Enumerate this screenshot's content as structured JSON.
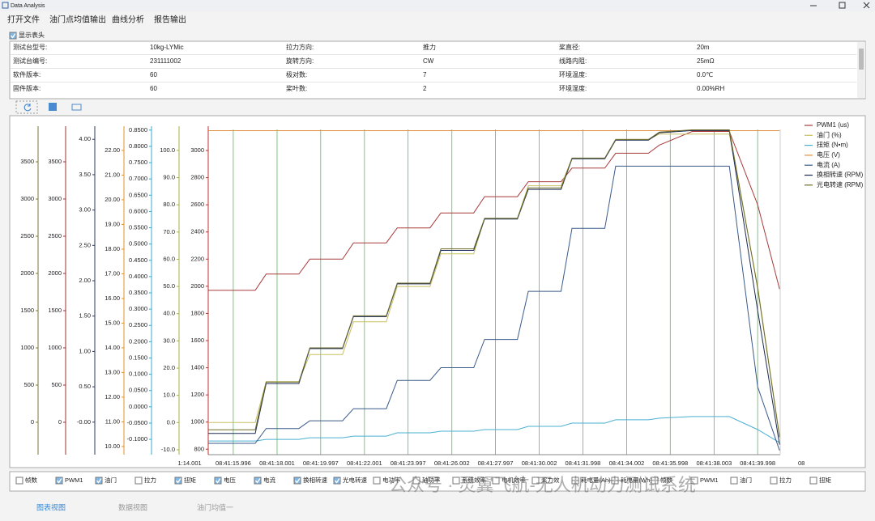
{
  "window": {
    "title": "Data Analysis"
  },
  "menu": [
    "打开文件",
    "油门点均值输出",
    "曲线分析",
    "报告输出"
  ],
  "header_toggle": {
    "label": "显示表头",
    "checked": true
  },
  "info_table": {
    "rows": [
      [
        "测试台型号:",
        "10kg-LYMic",
        "拉力方向:",
        "推力",
        "桨直径:",
        "20m"
      ],
      [
        "测试台编号:",
        "231111002",
        "旋转方向:",
        "CW",
        "线路内阻:",
        "25mΩ"
      ],
      [
        "软件版本:",
        "60",
        "极对数:",
        "7",
        "环境温度:",
        "0.0℃"
      ],
      [
        "固件版本:",
        "60",
        "桨叶数:",
        "2",
        "环境湿度:",
        "0.00%RH"
      ]
    ]
  },
  "chart_data": {
    "type": "line",
    "grid": true,
    "grid_color": "#5cb85c",
    "legend": "upper right",
    "x": [
      14.85,
      17.0,
      17.5,
      19.0,
      19.5,
      21.0,
      21.5,
      23.0,
      23.5,
      25.0,
      25.5,
      27.0,
      27.5,
      29.0,
      29.5,
      31.0,
      31.5,
      33.0,
      33.5,
      35.0,
      35.5,
      37.0,
      38.7,
      40.0,
      41.0
    ],
    "xlim": [
      14.85,
      41.03
    ],
    "xticks": [
      {
        "value": 14.001,
        "label": "1:14.001"
      },
      {
        "value": 15.996,
        "label": "08:41:15.996"
      },
      {
        "value": 18.001,
        "label": "08:41:18.001"
      },
      {
        "value": 19.997,
        "label": "08:41:19.997"
      },
      {
        "value": 22.001,
        "label": "08:41:22.001"
      },
      {
        "value": 23.997,
        "label": "08:41:23.997"
      },
      {
        "value": 26.002,
        "label": "08:41:26.002"
      },
      {
        "value": 27.997,
        "label": "08:41:27.997"
      },
      {
        "value": 30.002,
        "label": "08:41:30.002"
      },
      {
        "value": 31.998,
        "label": "08:41:31.998"
      },
      {
        "value": 34.002,
        "label": "08:41:34.002"
      },
      {
        "value": 35.998,
        "label": "08:41:35.998"
      },
      {
        "value": 38.003,
        "label": "08:41:38.003"
      },
      {
        "value": 39.998,
        "label": "08:41:39.998"
      },
      {
        "value": 42.0,
        "label": "08"
      }
    ],
    "axes": [
      {
        "color": "#7a7a3a",
        "ylim": [
          -435,
          3935
        ],
        "yticks": [
          0,
          500,
          1000,
          1500,
          2000,
          2500,
          3000,
          3500
        ]
      },
      {
        "color": "#9b3030",
        "ylim": [
          -435,
          3935
        ],
        "yticks": [
          0,
          500,
          1000,
          1500,
          2000,
          2500,
          3000,
          3500
        ]
      },
      {
        "color": "#2b3a5e",
        "ylim": [
          -0.46,
          4.14
        ],
        "yticks": [
          {
            "value": 0,
            "label": "-0.00"
          },
          {
            "value": 0.5,
            "label": "0.50"
          },
          {
            "value": 1,
            "label": "1.00"
          },
          {
            "value": 1.5,
            "label": "1.50"
          },
          {
            "value": 2,
            "label": "2.00"
          },
          {
            "value": 2.5,
            "label": "2.50"
          },
          {
            "value": 3,
            "label": "3.00"
          },
          {
            "value": 3.5,
            "label": "3.50"
          },
          {
            "value": 4,
            "label": "4.00"
          }
        ]
      },
      {
        "color": "#e0902a",
        "ylim": [
          9.67,
          22.85
        ],
        "yticks": [
          {
            "value": 10,
            "label": "10.00"
          },
          {
            "value": 11,
            "label": "11.00"
          },
          {
            "value": 12,
            "label": "12.00"
          },
          {
            "value": 13,
            "label": "13.00"
          },
          {
            "value": 14,
            "label": "14.00"
          },
          {
            "value": 15,
            "label": "15.00"
          },
          {
            "value": 16,
            "label": "16.00"
          },
          {
            "value": 17,
            "label": "17.00"
          },
          {
            "value": 18,
            "label": "18.00"
          },
          {
            "value": 19,
            "label": "19.00"
          },
          {
            "value": 20,
            "label": "20.00"
          },
          {
            "value": 21,
            "label": "21.00"
          },
          {
            "value": 22,
            "label": "22.00"
          }
        ]
      },
      {
        "color": "#3aa8d0",
        "ylim": [
          -0.147,
          0.852
        ],
        "yticks": [
          {
            "value": -0.1,
            "label": "-0.1000"
          },
          {
            "value": -0.05,
            "label": "-0.0500"
          },
          {
            "value": 0,
            "label": "0.0000"
          },
          {
            "value": 0.05,
            "label": "0.0500"
          },
          {
            "value": 0.1,
            "label": "0.1000"
          },
          {
            "value": 0.15,
            "label": "0.1500"
          },
          {
            "value": 0.2,
            "label": "0.2000"
          },
          {
            "value": 0.25,
            "label": "0.2500"
          },
          {
            "value": 0.3,
            "label": "0.3000"
          },
          {
            "value": 0.35,
            "label": "0.3500"
          },
          {
            "value": 0.4,
            "label": "0.4000"
          },
          {
            "value": 0.45,
            "label": "0.4500"
          },
          {
            "value": 0.5,
            "label": "0.5000"
          },
          {
            "value": 0.55,
            "label": "0.5500"
          },
          {
            "value": 0.6,
            "label": "0.6000"
          },
          {
            "value": 0.65,
            "label": "0.6500"
          },
          {
            "value": 0.7,
            "label": "0.7000"
          },
          {
            "value": 0.75,
            "label": "0.7500"
          },
          {
            "value": 0.8,
            "label": "0.8000"
          },
          {
            "value": 0.85,
            "label": "0.8500"
          }
        ]
      },
      {
        "color": "#a8b040",
        "ylim": [
          -11.8,
          107.7
        ],
        "yticks": [
          {
            "value": -10,
            "label": "-10.0"
          },
          {
            "value": 0,
            "label": "0.0"
          },
          {
            "value": 10,
            "label": "10.0"
          },
          {
            "value": 20,
            "label": "20.0"
          },
          {
            "value": 30,
            "label": "30.0"
          },
          {
            "value": 40,
            "label": "40.0"
          },
          {
            "value": 50,
            "label": "50.0"
          },
          {
            "value": 60,
            "label": "60.0"
          },
          {
            "value": 70,
            "label": "70.0"
          },
          {
            "value": 80,
            "label": "80.0"
          },
          {
            "value": 90,
            "label": "90.0"
          },
          {
            "value": 100,
            "label": "100.0"
          }
        ]
      },
      {
        "color": "#c03030",
        "ylim": [
          760,
          3155
        ],
        "yticks": [
          800,
          1000,
          1200,
          1400,
          1600,
          1800,
          2000,
          2200,
          2400,
          2600,
          2800,
          3000
        ]
      }
    ],
    "series": [
      {
        "name": "PWM1 (us)",
        "color": "#a83a3a",
        "axis": 6,
        "values": [
          1970,
          1970,
          2090,
          2090,
          2200,
          2200,
          2320,
          2320,
          2430,
          2430,
          2540,
          2540,
          2660,
          2660,
          2770,
          2770,
          2870,
          2870,
          2980,
          2980,
          3040,
          3140,
          3140,
          2600,
          1980
        ]
      },
      {
        "name": "油门 (%)",
        "color": "#c8c060",
        "axis": 5,
        "values": [
          0,
          0,
          15,
          15,
          25,
          25,
          37,
          37,
          50,
          50,
          62,
          62,
          75,
          75,
          87,
          87,
          97,
          97,
          104,
          104,
          106,
          106,
          106,
          50,
          -5
        ]
      },
      {
        "name": "扭矩 (N•m)",
        "color": "#4ab0d0",
        "axis": 4,
        "values": [
          -0.105,
          -0.105,
          -0.1,
          -0.1,
          -0.095,
          -0.095,
          -0.09,
          -0.09,
          -0.08,
          -0.08,
          -0.075,
          -0.075,
          -0.07,
          -0.07,
          -0.06,
          -0.06,
          -0.05,
          -0.05,
          -0.04,
          -0.04,
          -0.035,
          -0.03,
          -0.03,
          -0.07,
          -0.11
        ]
      },
      {
        "name": "电压 (V)",
        "color": "#e09040",
        "axis": 3,
        "values": [
          22.8,
          22.8,
          22.8,
          22.8,
          22.8,
          22.8,
          22.8,
          22.8,
          22.8,
          22.8,
          22.8,
          22.8,
          22.8,
          22.8,
          22.8,
          22.8,
          22.8,
          22.8,
          22.8,
          22.8,
          22.8,
          22.8,
          22.8,
          22.8,
          22.8
        ]
      },
      {
        "name": "电流 (A)",
        "color": "#3a5a8a",
        "axis": 2,
        "values": [
          -0.3,
          -0.3,
          -0.09,
          -0.09,
          0.02,
          0.02,
          0.19,
          0.19,
          0.59,
          0.59,
          0.77,
          0.77,
          1.17,
          1.17,
          1.85,
          1.85,
          2.74,
          2.74,
          3.62,
          3.62,
          3.62,
          3.62,
          3.62,
          0.5,
          -0.4
        ]
      },
      {
        "name": "换相转速 (RPM)",
        "color": "#1c2b55",
        "axis": 1,
        "values": [
          -150,
          -150,
          520,
          520,
          990,
          990,
          1420,
          1420,
          1860,
          1860,
          2310,
          2310,
          2730,
          2730,
          3130,
          3130,
          3540,
          3540,
          3790,
          3790,
          3890,
          3920,
          3920,
          1500,
          -300
        ]
      },
      {
        "name": "光电转速 (RPM)",
        "color": "#6b6b2a",
        "axis": 0,
        "values": [
          -100,
          -100,
          540,
          540,
          1000,
          1000,
          1430,
          1430,
          1870,
          1870,
          2330,
          2330,
          2740,
          2740,
          3150,
          3150,
          3550,
          3550,
          3800,
          3800,
          3900,
          3930,
          3930,
          1800,
          -200
        ]
      }
    ]
  },
  "channel_toggles": [
    {
      "label": "帧数",
      "checked": false
    },
    {
      "label": "PWM1",
      "checked": true
    },
    {
      "label": "油门",
      "checked": true
    },
    {
      "label": "拉力",
      "checked": false
    },
    {
      "label": "扭矩",
      "checked": true
    },
    {
      "label": "电压",
      "checked": true
    },
    {
      "label": "电流",
      "checked": true
    },
    {
      "label": "换相转速",
      "checked": true
    },
    {
      "label": "光电转速",
      "checked": true
    },
    {
      "label": "电功率",
      "checked": false
    },
    {
      "label": "轴功率",
      "checked": false
    },
    {
      "label": "系统效率",
      "checked": false
    },
    {
      "label": "电机效率",
      "checked": false
    },
    {
      "label": "桨力效",
      "checked": false
    },
    {
      "label": "耗电量(Ah)",
      "checked": false
    },
    {
      "label": "耗电量(Wh)",
      "checked": false
    },
    {
      "label": "帧数",
      "checked": false
    },
    {
      "label": "PWM1",
      "checked": false
    },
    {
      "label": "油门",
      "checked": false
    },
    {
      "label": "拉力",
      "checked": false
    },
    {
      "label": "扭矩",
      "checked": false
    }
  ],
  "watermark": "公众号 · 灵翼飞航-无人机动力测试系统",
  "tabs": [
    "图表视图",
    "数据视图",
    "油门均值一"
  ]
}
